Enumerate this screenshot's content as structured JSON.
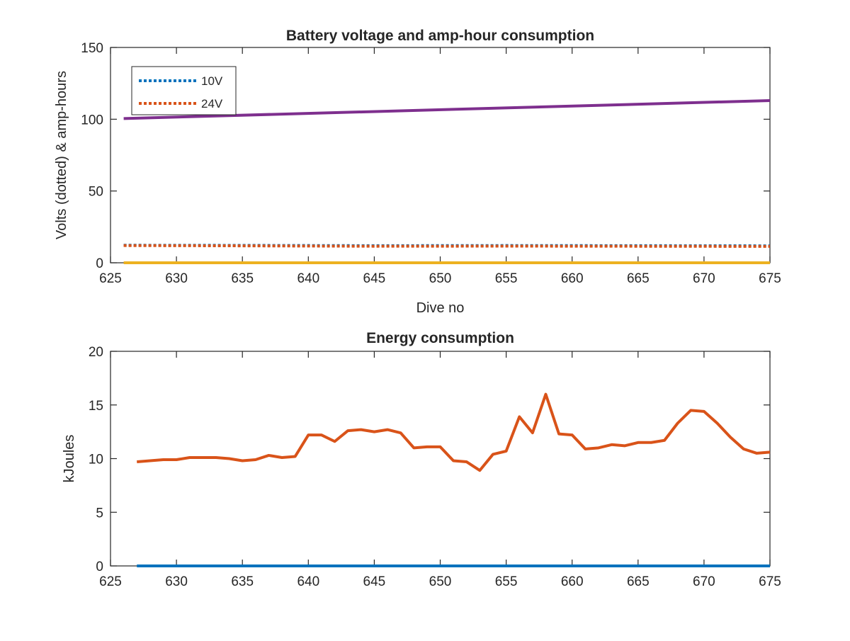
{
  "chart_data": [
    {
      "type": "line",
      "title": "Battery voltage and amp-hour consumption",
      "xlabel": "Dive no",
      "ylabel": "Volts (dotted) & amp-hours",
      "xlim": [
        625,
        675
      ],
      "ylim": [
        0,
        150
      ],
      "xticks": [
        625,
        630,
        635,
        640,
        645,
        650,
        655,
        660,
        665,
        670,
        675
      ],
      "yticks": [
        0,
        50,
        100,
        150
      ],
      "grid": false,
      "legend": "top-left",
      "series": [
        {
          "name": "10V",
          "style": "dotted",
          "color": "#0072BD",
          "x": [
            626,
            635,
            645,
            655,
            665,
            675
          ],
          "y": [
            12.2,
            12.1,
            11.9,
            12.0,
            11.9,
            11.8
          ]
        },
        {
          "name": "24V",
          "style": "dotted",
          "color": "#D95319",
          "x": [
            626,
            635,
            645,
            655,
            665,
            675
          ],
          "y": [
            12.0,
            11.8,
            11.5,
            11.6,
            11.5,
            11.4
          ]
        },
        {
          "style": "solid",
          "color": "#7E2F8E",
          "x": [
            626,
            675
          ],
          "y": [
            100.5,
            113
          ]
        },
        {
          "style": "solid",
          "color": "#EDB120",
          "x": [
            626,
            675
          ],
          "y": [
            0,
            0
          ]
        }
      ]
    },
    {
      "type": "line",
      "title": "Energy consumption",
      "xlabel": "",
      "ylabel": "kJoules",
      "xlim": [
        625,
        675
      ],
      "ylim": [
        0,
        20
      ],
      "xticks": [
        625,
        630,
        635,
        640,
        645,
        650,
        655,
        660,
        665,
        670,
        675
      ],
      "yticks": [
        0,
        5,
        10,
        15,
        20
      ],
      "grid": false,
      "series": [
        {
          "style": "solid",
          "color": "#0072BD",
          "x": [
            627,
            675
          ],
          "y": [
            0,
            0
          ]
        },
        {
          "style": "solid",
          "color": "#D95319",
          "x": [
            627,
            628,
            629,
            630,
            631,
            632,
            633,
            634,
            635,
            636,
            637,
            638,
            639,
            640,
            641,
            642,
            643,
            644,
            645,
            646,
            647,
            648,
            649,
            650,
            651,
            652,
            653,
            654,
            655,
            656,
            657,
            658,
            659,
            660,
            661,
            662,
            663,
            664,
            665,
            666,
            667,
            668,
            669,
            670,
            671,
            672,
            673,
            674,
            675
          ],
          "y": [
            9.7,
            9.8,
            9.9,
            9.9,
            10.1,
            10.1,
            10.1,
            10.0,
            9.8,
            9.9,
            10.3,
            10.1,
            10.2,
            12.2,
            12.2,
            11.6,
            12.6,
            12.7,
            12.5,
            12.7,
            12.4,
            11.0,
            11.1,
            11.1,
            9.8,
            9.7,
            8.9,
            10.4,
            10.7,
            13.9,
            12.4,
            16.0,
            12.3,
            12.2,
            10.9,
            11.0,
            11.3,
            11.2,
            11.5,
            11.5,
            11.7,
            13.3,
            14.5,
            14.4,
            13.3,
            12.0,
            10.9,
            10.5,
            10.6
          ]
        }
      ]
    }
  ]
}
